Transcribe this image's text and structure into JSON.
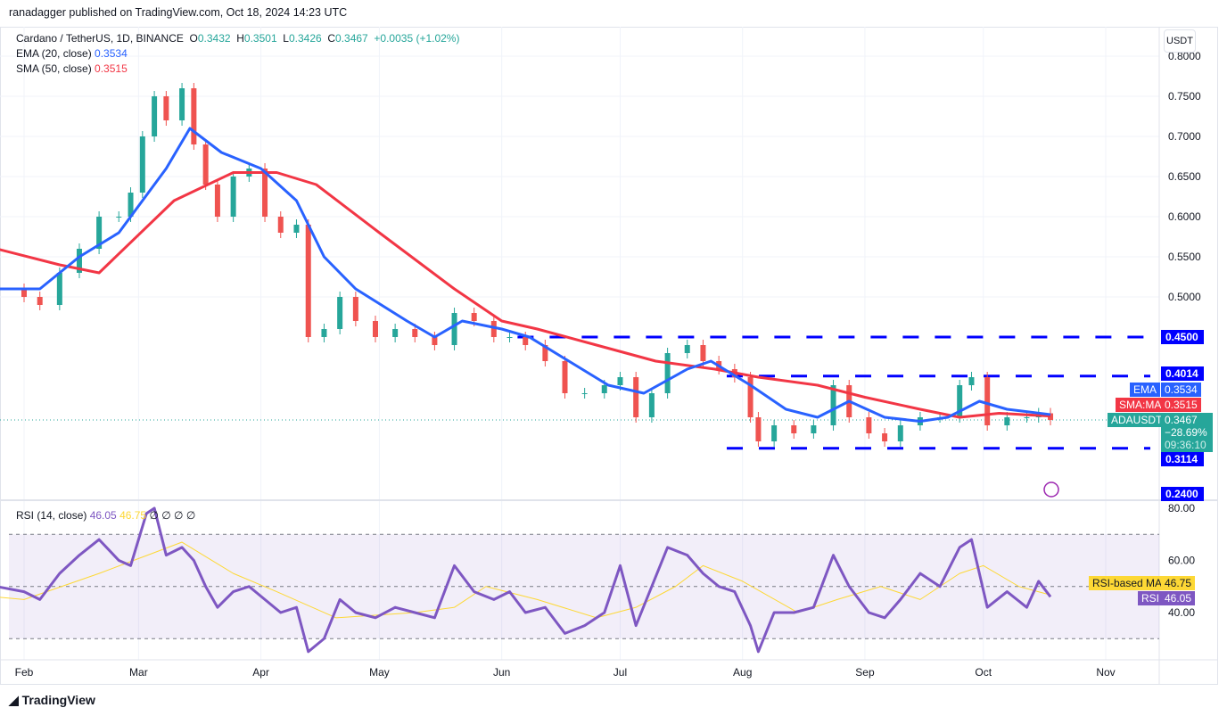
{
  "published": "ranadagger published on TradingView.com, Oct 18, 2024 14:23 UTC",
  "legend": {
    "symbol": "Cardano / TetherUS, 1D, BINANCE",
    "o_label": "O",
    "o": "0.3432",
    "h_label": "H",
    "h": "0.3501",
    "l_label": "L",
    "l": "0.3426",
    "c_label": "C",
    "c": "0.3467",
    "change": "+0.0035 (+1.02%)",
    "ema": "EMA (20, close)",
    "ema_val": "0.3534",
    "sma": "SMA (50, close)",
    "sma_val": "0.3515",
    "rsi": "RSI (14, close)",
    "rsi_val": "46.05",
    "rsi_ma_val": "46.75",
    "rsi_extra": "∅ ∅ ∅ ∅"
  },
  "currency": "USDT",
  "tags": {
    "ema": "EMA",
    "ema_val": "0.3534",
    "sma": "SMA:MA",
    "sma_val": "0.3515",
    "sym": "ADAUSDT",
    "price": "0.3467",
    "pct": "−28.69%",
    "countdown": "09:36:10",
    "rsi_ma": "RSI-based MA",
    "rsi_ma_val": "46.75",
    "rsi": "RSI",
    "rsi_val": "46.05"
  },
  "branding": "TradingView",
  "colors": {
    "up": "#26a69a",
    "down": "#ef5350",
    "ema": "#2962ff",
    "sma": "#f23645",
    "levels": "#0000ff",
    "rsi": "#7e57c2",
    "rsi_ma": "#fdd835"
  },
  "chart_data": {
    "type": "candlestick",
    "price_axis": {
      "ticks": [
        "0.8000",
        "0.7500",
        "0.7000",
        "0.6500",
        "0.6000",
        "0.5500",
        "0.5000"
      ],
      "range": [
        0.235,
        0.805
      ]
    },
    "time_axis": {
      "ticks": [
        [
          "Feb",
          "2024-02-01"
        ],
        [
          "Mar",
          "2024-03-01"
        ],
        [
          "Apr",
          "2024-04-01"
        ],
        [
          "May",
          "2024-05-01"
        ],
        [
          "Jun",
          "2024-06-01"
        ],
        [
          "Jul",
          "2024-07-01"
        ],
        [
          "Aug",
          "2024-08-01"
        ],
        [
          "Sep",
          "2024-09-01"
        ],
        [
          "Oct",
          "2024-10-01"
        ],
        [
          "Nov",
          "2024-11-01"
        ]
      ]
    },
    "levels": [
      {
        "value": 0.45,
        "label": "0.4500",
        "from": "2024-06-05"
      },
      {
        "value": 0.4014,
        "label": "0.4014",
        "from": "2024-07-28"
      },
      {
        "value": 0.3114,
        "label": "0.3114",
        "from": "2024-07-28"
      }
    ],
    "extra_label": {
      "value": 0.24,
      "label": "0.2400"
    },
    "closes": [
      [
        "2024-01-25",
        0.51
      ],
      [
        "2024-02-01",
        0.5
      ],
      [
        "2024-02-05",
        0.49
      ],
      [
        "2024-02-10",
        0.53
      ],
      [
        "2024-02-15",
        0.56
      ],
      [
        "2024-02-20",
        0.6
      ],
      [
        "2024-02-25",
        0.6
      ],
      [
        "2024-02-28",
        0.63
      ],
      [
        "2024-03-02",
        0.7
      ],
      [
        "2024-03-05",
        0.75
      ],
      [
        "2024-03-08",
        0.72
      ],
      [
        "2024-03-12",
        0.76
      ],
      [
        "2024-03-15",
        0.69
      ],
      [
        "2024-03-18",
        0.64
      ],
      [
        "2024-03-21",
        0.6
      ],
      [
        "2024-03-25",
        0.65
      ],
      [
        "2024-03-29",
        0.66
      ],
      [
        "2024-04-02",
        0.6
      ],
      [
        "2024-04-06",
        0.58
      ],
      [
        "2024-04-10",
        0.59
      ],
      [
        "2024-04-13",
        0.45
      ],
      [
        "2024-04-17",
        0.46
      ],
      [
        "2024-04-21",
        0.5
      ],
      [
        "2024-04-25",
        0.47
      ],
      [
        "2024-04-30",
        0.45
      ],
      [
        "2024-05-05",
        0.46
      ],
      [
        "2024-05-10",
        0.45
      ],
      [
        "2024-05-15",
        0.44
      ],
      [
        "2024-05-20",
        0.48
      ],
      [
        "2024-05-25",
        0.47
      ],
      [
        "2024-05-30",
        0.45
      ],
      [
        "2024-06-03",
        0.45
      ],
      [
        "2024-06-07",
        0.44
      ],
      [
        "2024-06-12",
        0.42
      ],
      [
        "2024-06-17",
        0.38
      ],
      [
        "2024-06-22",
        0.38
      ],
      [
        "2024-06-27",
        0.39
      ],
      [
        "2024-07-01",
        0.4
      ],
      [
        "2024-07-05",
        0.35
      ],
      [
        "2024-07-09",
        0.38
      ],
      [
        "2024-07-13",
        0.43
      ],
      [
        "2024-07-18",
        0.44
      ],
      [
        "2024-07-22",
        0.42
      ],
      [
        "2024-07-26",
        0.41
      ],
      [
        "2024-07-30",
        0.4
      ],
      [
        "2024-08-03",
        0.35
      ],
      [
        "2024-08-05",
        0.32
      ],
      [
        "2024-08-09",
        0.34
      ],
      [
        "2024-08-14",
        0.33
      ],
      [
        "2024-08-19",
        0.34
      ],
      [
        "2024-08-24",
        0.39
      ],
      [
        "2024-08-28",
        0.35
      ],
      [
        "2024-09-02",
        0.33
      ],
      [
        "2024-09-06",
        0.32
      ],
      [
        "2024-09-10",
        0.34
      ],
      [
        "2024-09-15",
        0.35
      ],
      [
        "2024-09-20",
        0.35
      ],
      [
        "2024-09-25",
        0.39
      ],
      [
        "2024-09-28",
        0.4
      ],
      [
        "2024-10-02",
        0.34
      ],
      [
        "2024-10-07",
        0.35
      ],
      [
        "2024-10-12",
        0.35
      ],
      [
        "2024-10-15",
        0.355
      ],
      [
        "2024-10-18",
        0.3467
      ]
    ],
    "ema20": [
      [
        "2024-01-25",
        0.51
      ],
      [
        "2024-02-05",
        0.51
      ],
      [
        "2024-02-15",
        0.55
      ],
      [
        "2024-02-25",
        0.58
      ],
      [
        "2024-03-08",
        0.66
      ],
      [
        "2024-03-14",
        0.71
      ],
      [
        "2024-03-22",
        0.68
      ],
      [
        "2024-04-01",
        0.66
      ],
      [
        "2024-04-10",
        0.62
      ],
      [
        "2024-04-17",
        0.55
      ],
      [
        "2024-04-25",
        0.51
      ],
      [
        "2024-05-08",
        0.47
      ],
      [
        "2024-05-15",
        0.45
      ],
      [
        "2024-05-22",
        0.47
      ],
      [
        "2024-06-01",
        0.46
      ],
      [
        "2024-06-08",
        0.45
      ],
      [
        "2024-06-18",
        0.42
      ],
      [
        "2024-06-28",
        0.39
      ],
      [
        "2024-07-07",
        0.38
      ],
      [
        "2024-07-18",
        0.41
      ],
      [
        "2024-07-24",
        0.42
      ],
      [
        "2024-08-03",
        0.39
      ],
      [
        "2024-08-12",
        0.36
      ],
      [
        "2024-08-20",
        0.35
      ],
      [
        "2024-08-28",
        0.37
      ],
      [
        "2024-09-06",
        0.35
      ],
      [
        "2024-09-15",
        0.345
      ],
      [
        "2024-09-22",
        0.35
      ],
      [
        "2024-09-30",
        0.37
      ],
      [
        "2024-10-07",
        0.36
      ],
      [
        "2024-10-18",
        0.3534
      ]
    ],
    "sma50": [
      [
        "2024-01-25",
        0.56
      ],
      [
        "2024-02-10",
        0.54
      ],
      [
        "2024-02-20",
        0.53
      ],
      [
        "2024-03-10",
        0.62
      ],
      [
        "2024-03-25",
        0.655
      ],
      [
        "2024-04-05",
        0.655
      ],
      [
        "2024-04-15",
        0.64
      ],
      [
        "2024-05-01",
        0.58
      ],
      [
        "2024-05-20",
        0.51
      ],
      [
        "2024-06-01",
        0.47
      ],
      [
        "2024-06-10",
        0.46
      ],
      [
        "2024-06-25",
        0.44
      ],
      [
        "2024-07-10",
        0.42
      ],
      [
        "2024-07-25",
        0.41
      ],
      [
        "2024-08-05",
        0.4
      ],
      [
        "2024-08-20",
        0.39
      ],
      [
        "2024-09-01",
        0.375
      ],
      [
        "2024-09-15",
        0.36
      ],
      [
        "2024-09-25",
        0.35
      ],
      [
        "2024-10-05",
        0.355
      ],
      [
        "2024-10-18",
        0.3515
      ]
    ],
    "rsi_axis": {
      "ticks": [
        "80.00",
        "60.00",
        "40.00"
      ],
      "band": [
        30,
        70
      ],
      "mid": 50
    },
    "rsi": [
      [
        "2024-01-25",
        50
      ],
      [
        "2024-02-01",
        48
      ],
      [
        "2024-02-05",
        45
      ],
      [
        "2024-02-10",
        55
      ],
      [
        "2024-02-15",
        62
      ],
      [
        "2024-02-20",
        68
      ],
      [
        "2024-02-25",
        60
      ],
      [
        "2024-02-28",
        58
      ],
      [
        "2024-03-03",
        78
      ],
      [
        "2024-03-05",
        80
      ],
      [
        "2024-03-08",
        62
      ],
      [
        "2024-03-12",
        65
      ],
      [
        "2024-03-15",
        60
      ],
      [
        "2024-03-18",
        50
      ],
      [
        "2024-03-21",
        42
      ],
      [
        "2024-03-25",
        48
      ],
      [
        "2024-03-29",
        50
      ],
      [
        "2024-04-02",
        45
      ],
      [
        "2024-04-06",
        40
      ],
      [
        "2024-04-10",
        42
      ],
      [
        "2024-04-13",
        25
      ],
      [
        "2024-04-17",
        30
      ],
      [
        "2024-04-21",
        45
      ],
      [
        "2024-04-25",
        40
      ],
      [
        "2024-04-30",
        38
      ],
      [
        "2024-05-05",
        42
      ],
      [
        "2024-05-10",
        40
      ],
      [
        "2024-05-15",
        38
      ],
      [
        "2024-05-20",
        58
      ],
      [
        "2024-05-25",
        48
      ],
      [
        "2024-05-30",
        45
      ],
      [
        "2024-06-03",
        48
      ],
      [
        "2024-06-07",
        40
      ],
      [
        "2024-06-12",
        42
      ],
      [
        "2024-06-17",
        32
      ],
      [
        "2024-06-22",
        35
      ],
      [
        "2024-06-27",
        40
      ],
      [
        "2024-07-01",
        58
      ],
      [
        "2024-07-05",
        35
      ],
      [
        "2024-07-09",
        50
      ],
      [
        "2024-07-13",
        65
      ],
      [
        "2024-07-18",
        62
      ],
      [
        "2024-07-22",
        55
      ],
      [
        "2024-07-26",
        50
      ],
      [
        "2024-07-30",
        48
      ],
      [
        "2024-08-03",
        35
      ],
      [
        "2024-08-05",
        25
      ],
      [
        "2024-08-09",
        40
      ],
      [
        "2024-08-14",
        40
      ],
      [
        "2024-08-19",
        42
      ],
      [
        "2024-08-24",
        62
      ],
      [
        "2024-08-28",
        50
      ],
      [
        "2024-09-02",
        40
      ],
      [
        "2024-09-06",
        38
      ],
      [
        "2024-09-10",
        45
      ],
      [
        "2024-09-15",
        55
      ],
      [
        "2024-09-20",
        50
      ],
      [
        "2024-09-25",
        65
      ],
      [
        "2024-09-28",
        68
      ],
      [
        "2024-10-02",
        42
      ],
      [
        "2024-10-07",
        48
      ],
      [
        "2024-10-12",
        42
      ],
      [
        "2024-10-15",
        52
      ],
      [
        "2024-10-18",
        46.05
      ]
    ],
    "rsi_ma": [
      [
        "2024-01-25",
        46
      ],
      [
        "2024-02-01",
        45
      ],
      [
        "2024-02-20",
        55
      ],
      [
        "2024-03-05",
        63
      ],
      [
        "2024-03-12",
        67
      ],
      [
        "2024-03-25",
        55
      ],
      [
        "2024-04-05",
        48
      ],
      [
        "2024-04-20",
        38
      ],
      [
        "2024-05-10",
        40
      ],
      [
        "2024-05-20",
        42
      ],
      [
        "2024-05-28",
        50
      ],
      [
        "2024-06-10",
        45
      ],
      [
        "2024-06-25",
        38
      ],
      [
        "2024-07-05",
        42
      ],
      [
        "2024-07-15",
        50
      ],
      [
        "2024-07-22",
        58
      ],
      [
        "2024-08-01",
        52
      ],
      [
        "2024-08-15",
        40
      ],
      [
        "2024-08-25",
        45
      ],
      [
        "2024-09-05",
        50
      ],
      [
        "2024-09-15",
        45
      ],
      [
        "2024-09-25",
        55
      ],
      [
        "2024-10-01",
        58
      ],
      [
        "2024-10-10",
        50
      ],
      [
        "2024-10-18",
        46.75
      ]
    ]
  }
}
